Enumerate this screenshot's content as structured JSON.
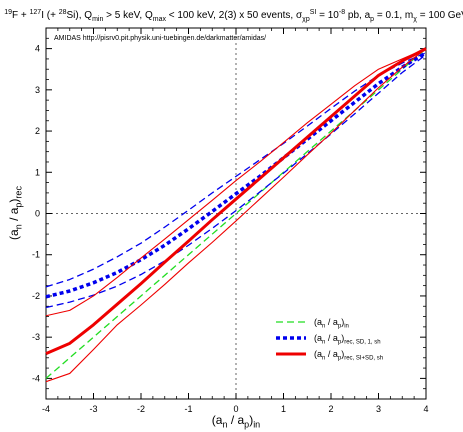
{
  "chart_data": {
    "type": "line",
    "title": "19F + 127I (+ 28Si), Qmin > 5 keV, Qmax < 100 keV, 2(3) x 50 events, σχpSI = 10-8 pb, ap = 0.1, mχ = 100 GeV",
    "subtitle": "AMIDAS   http://pisrv0.pit.physik.uni-tuebingen.de/darkmatter/amidas/",
    "xlabel": "(an / ap)in",
    "ylabel": "(an / ap)rec",
    "xlim": [
      -4,
      4
    ],
    "ylim": [
      -4.5,
      4.5
    ],
    "x_ticks": [
      -4,
      -3,
      -2,
      -1,
      0,
      1,
      2,
      3,
      4
    ],
    "y_ticks": [
      -4,
      -3,
      -2,
      -1,
      0,
      1,
      2,
      3,
      4
    ],
    "grid": false,
    "legend_position": "bottom-right",
    "series": [
      {
        "name": "(an / ap)in",
        "style": "dashed",
        "color": "#22dd22",
        "x": [
          -4,
          4
        ],
        "y": [
          -4,
          4
        ]
      },
      {
        "name": "(an / ap)rec, SD, 1, sh",
        "style": "dotted",
        "color": "#0000ee",
        "x": [
          -4,
          -3.5,
          -3,
          -2.5,
          -2,
          -1.5,
          -1,
          -0.5,
          0,
          0.5,
          1,
          1.5,
          2,
          2.5,
          3,
          3.5,
          4
        ],
        "y": [
          -2.02,
          -1.88,
          -1.68,
          -1.43,
          -1.12,
          -0.77,
          -0.37,
          0.05,
          0.48,
          0.9,
          1.35,
          1.8,
          2.25,
          2.7,
          3.15,
          3.55,
          3.9
        ]
      },
      {
        "name": "SD upper band",
        "style": "dashed",
        "color": "#0000ee",
        "x": [
          -4,
          -3.5,
          -3,
          -2.5,
          -2,
          -1.5,
          -1,
          -0.5,
          0,
          0.5,
          1,
          1.5,
          2,
          2.5,
          3,
          3.5,
          4
        ],
        "y": [
          -1.78,
          -1.6,
          -1.35,
          -1.05,
          -0.72,
          -0.33,
          0.08,
          0.5,
          0.9,
          1.3,
          1.7,
          2.12,
          2.55,
          2.97,
          3.35,
          3.65,
          3.9
        ]
      },
      {
        "name": "SD lower band",
        "style": "dashed",
        "color": "#0000ee",
        "x": [
          -4,
          -3.5,
          -3,
          -2.5,
          -2,
          -1.5,
          -1,
          -0.5,
          0,
          0.5,
          1,
          1.5,
          2,
          2.5,
          3,
          3.5,
          4
        ],
        "y": [
          -2.28,
          -2.15,
          -1.98,
          -1.76,
          -1.48,
          -1.15,
          -0.77,
          -0.36,
          0.07,
          0.52,
          0.98,
          1.45,
          1.93,
          2.42,
          2.92,
          3.42,
          3.85
        ]
      },
      {
        "name": "(an / ap)rec, SI+SD, sh",
        "style": "solid-thick",
        "color": "#ee0000",
        "x": [
          -4,
          -3.5,
          -3,
          -2.5,
          -2,
          -1.5,
          -1,
          -0.5,
          0,
          0.5,
          1,
          1.5,
          2,
          2.5,
          3,
          3.5,
          4
        ],
        "y": [
          -3.4,
          -3.15,
          -2.7,
          -2.2,
          -1.7,
          -1.18,
          -0.67,
          -0.15,
          0.35,
          0.85,
          1.35,
          1.85,
          2.35,
          2.85,
          3.35,
          3.7,
          4.0
        ]
      },
      {
        "name": "SI+SD upper band",
        "style": "solid",
        "color": "#ee0000",
        "x": [
          -4,
          -3.5,
          -3,
          -2.5,
          -2,
          -1.5,
          -1,
          -0.5,
          0,
          0.5,
          1,
          1.5,
          2,
          2.5,
          3,
          3.5,
          4
        ],
        "y": [
          -2.48,
          -2.35,
          -2.0,
          -1.55,
          -1.08,
          -0.62,
          -0.15,
          0.32,
          0.8,
          1.25,
          1.72,
          2.2,
          2.65,
          3.1,
          3.5,
          3.75,
          4.0
        ]
      },
      {
        "name": "SI+SD lower band",
        "style": "solid",
        "color": "#ee0000",
        "x": [
          -4,
          -3.5,
          -3,
          -2.5,
          -2,
          -1.5,
          -1,
          -0.5,
          0,
          0.5,
          1,
          1.5,
          2,
          2.5,
          3,
          3.5,
          4
        ],
        "y": [
          -4.08,
          -3.88,
          -3.3,
          -2.7,
          -2.22,
          -1.72,
          -1.2,
          -0.7,
          -0.18,
          0.35,
          0.88,
          1.42,
          1.95,
          2.5,
          3.05,
          3.55,
          4.0
        ]
      }
    ],
    "legend": [
      {
        "label": "(an / ap)in",
        "color": "#22dd22",
        "style": "dashed"
      },
      {
        "label": "(an / ap)rec, SD, 1, sh",
        "color": "#0000ee",
        "style": "dotted"
      },
      {
        "label": "(an / ap)rec, SI+SD, sh",
        "color": "#ee0000",
        "style": "solid-thick"
      }
    ]
  }
}
